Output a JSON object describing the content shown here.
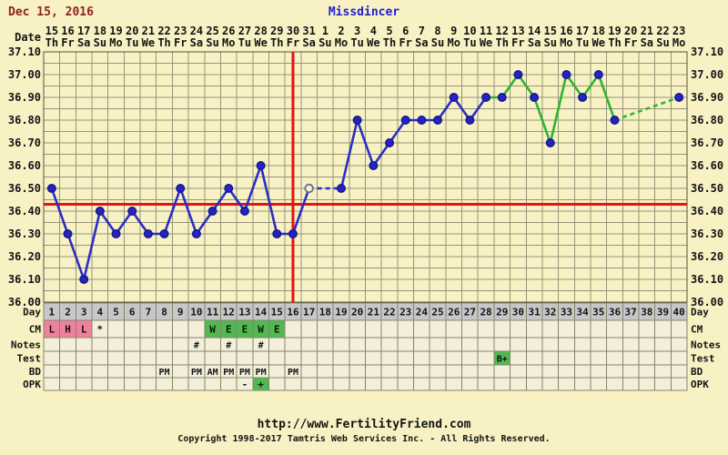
{
  "header": {
    "date": "Dec 15, 2016",
    "username": "Missdincer"
  },
  "axis": {
    "date_label": "Date",
    "y_labels": [
      "37.10",
      "37.00",
      "36.90",
      "36.80",
      "36.70",
      "36.60",
      "36.50",
      "36.40",
      "36.30",
      "36.20",
      "36.10",
      "36.00"
    ]
  },
  "calendar": {
    "dates": [
      "15",
      "16",
      "17",
      "18",
      "19",
      "20",
      "21",
      "22",
      "23",
      "24",
      "25",
      "26",
      "27",
      "28",
      "29",
      "30",
      "31",
      "1",
      "2",
      "3",
      "4",
      "5",
      "6",
      "7",
      "8",
      "9",
      "10",
      "11",
      "12",
      "13",
      "14",
      "15",
      "16",
      "17",
      "18",
      "19",
      "20",
      "21",
      "22",
      "23"
    ],
    "weekdays": [
      "Th",
      "Fr",
      "Sa",
      "Su",
      "Mo",
      "Tu",
      "We",
      "Th",
      "Fr",
      "Sa",
      "Su",
      "Mo",
      "Tu",
      "We",
      "Th",
      "Fr",
      "Sa",
      "Su",
      "Mo",
      "Tu",
      "We",
      "Th",
      "Fr",
      "Sa",
      "Su",
      "Mo",
      "Tu",
      "We",
      "Th",
      "Fr",
      "Sa",
      "Su",
      "Mo",
      "Tu",
      "We",
      "Th",
      "Fr",
      "Sa",
      "Su",
      "Mo"
    ]
  },
  "chart_data": {
    "type": "line",
    "title": "Missdincer",
    "xlabel": "Day",
    "days": [
      1,
      2,
      3,
      4,
      5,
      6,
      7,
      8,
      9,
      10,
      11,
      12,
      13,
      14,
      15,
      16,
      17,
      18,
      19,
      20,
      21,
      22,
      23,
      24,
      25,
      26,
      27,
      28,
      29,
      30,
      31,
      32,
      33,
      34,
      35,
      36,
      37,
      38,
      39,
      40
    ],
    "temps": [
      36.5,
      36.3,
      36.1,
      36.4,
      36.3,
      36.4,
      36.3,
      36.3,
      36.5,
      36.3,
      36.4,
      36.5,
      36.4,
      36.6,
      36.3,
      36.3,
      36.5,
      null,
      36.5,
      36.8,
      36.6,
      36.7,
      36.8,
      36.8,
      36.8,
      36.9,
      36.8,
      36.9,
      36.9,
      37.0,
      36.9,
      36.7,
      37.0,
      36.9,
      37.0,
      36.8,
      null,
      null,
      null,
      36.9
    ],
    "ylim": [
      36.0,
      37.1
    ],
    "y_tick_step": 0.1,
    "y_grid_minor_step": 0.05,
    "grid": true,
    "coverline_temp": 36.43,
    "ovulation_line_day": 16,
    "open_circle_days": [
      17
    ],
    "green_line_from_day": 28
  },
  "table": {
    "row_labels": [
      "Day",
      "CM",
      "Notes",
      "Test",
      "BD",
      "OPK"
    ],
    "cm": [
      {
        "day": 1,
        "text": "L",
        "bg": "pink"
      },
      {
        "day": 2,
        "text": "H",
        "bg": "pink"
      },
      {
        "day": 3,
        "text": "L",
        "bg": "pink"
      },
      {
        "day": 4,
        "text": "*",
        "bg": "none"
      },
      {
        "day": 11,
        "text": "W",
        "bg": "green"
      },
      {
        "day": 12,
        "text": "E",
        "bg": "green"
      },
      {
        "day": 13,
        "text": "E",
        "bg": "green"
      },
      {
        "day": 14,
        "text": "W",
        "bg": "green"
      },
      {
        "day": 15,
        "text": "E",
        "bg": "green"
      }
    ],
    "notes": [
      {
        "day": 10,
        "text": "#"
      },
      {
        "day": 12,
        "text": "#"
      },
      {
        "day": 14,
        "text": "#"
      }
    ],
    "test": [
      {
        "day": 29,
        "text": "B+",
        "bg": "green"
      }
    ],
    "bd": [
      {
        "day": 8,
        "text": "PM"
      },
      {
        "day": 10,
        "text": "PM"
      },
      {
        "day": 11,
        "text": "AM"
      },
      {
        "day": 12,
        "text": "PM"
      },
      {
        "day": 13,
        "text": "PM"
      },
      {
        "day": 14,
        "text": "PM"
      },
      {
        "day": 16,
        "text": "PM"
      }
    ],
    "opk": [
      {
        "day": 13,
        "text": "-"
      },
      {
        "day": 14,
        "text": "+",
        "bg": "green"
      }
    ]
  },
  "footer": {
    "url": "http://www.FertilityFriend.com",
    "copyright": "Copyright 1998-2017 Tamtris Web Services Inc. - All Rights Reserved."
  },
  "colors": {
    "page_bg": "#F7F1C4",
    "grid": "#95957A",
    "frame": "#55553E",
    "red": "#E81212",
    "line_blue": "#2C2CC4",
    "line_green": "#2FB32F",
    "point_fill": "#2424BE",
    "point_stroke": "#15158F",
    "open_point_stroke": "#6A6A9E",
    "cream_cell": "#F4EFDB",
    "gray_cell": "#C7C7C7",
    "cell_border": "#85856B",
    "pink_cell": "#F0809E",
    "green_cell": "#4FBA4F",
    "title_red": "#8E2222",
    "name_blue": "#2020CC",
    "text_dark": "#141414"
  }
}
